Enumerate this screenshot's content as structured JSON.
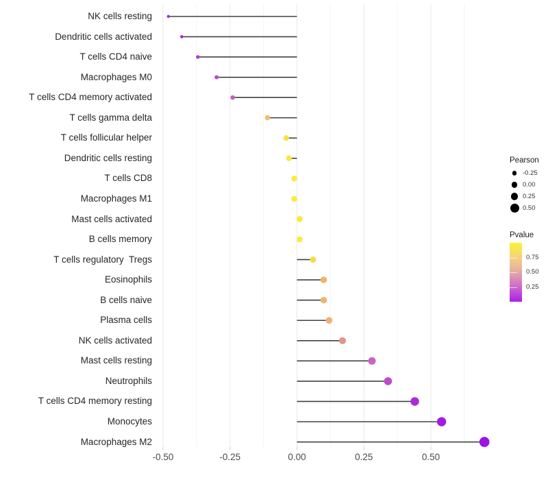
{
  "chart_data": {
    "type": "scatter",
    "variant": "lollipop",
    "title": "",
    "xlabel": "",
    "ylabel": "",
    "xlim": [
      -0.545,
      0.735
    ],
    "x_major_ticks": [
      -0.5,
      -0.25,
      0,
      0.25,
      0.5
    ],
    "x_minor_ticks": [
      -0.375,
      -0.125,
      0.125,
      0.375,
      0.625
    ],
    "x_tick_labels": [
      "-0.50",
      "-0.25",
      "0.00",
      "0.25",
      "0.50"
    ],
    "grid": "vertical-only",
    "stem_color": "#404040",
    "points": [
      {
        "label": "NK cells resting",
        "pearson": -0.48,
        "pvalue_approx": 0.1,
        "color": "#9B2FD1"
      },
      {
        "label": "Dendritic cells activated",
        "pearson": -0.43,
        "pvalue_approx": 0.12,
        "color": "#A134D3"
      },
      {
        "label": "T cells CD4 naive",
        "pearson": -0.37,
        "pvalue_approx": 0.15,
        "color": "#A93CCF"
      },
      {
        "label": "Macrophages M0",
        "pearson": -0.3,
        "pvalue_approx": 0.22,
        "color": "#B84CC6"
      },
      {
        "label": "T cells CD4 memory activated",
        "pearson": -0.24,
        "pvalue_approx": 0.28,
        "color": "#C25FBB"
      },
      {
        "label": "T cells gamma delta",
        "pearson": -0.11,
        "pvalue_approx": 0.65,
        "color": "#F1BC79"
      },
      {
        "label": "T cells follicular helper",
        "pearson": -0.04,
        "pvalue_approx": 0.9,
        "color": "#F8E340"
      },
      {
        "label": "Dendritic cells resting",
        "pearson": -0.03,
        "pvalue_approx": 0.92,
        "color": "#FAE93A"
      },
      {
        "label": "T cells CD8",
        "pearson": -0.01,
        "pvalue_approx": 0.95,
        "color": "#FBED34"
      },
      {
        "label": "Macrophages M1",
        "pearson": -0.01,
        "pvalue_approx": 0.95,
        "color": "#FBED34"
      },
      {
        "label": "Mast cells activated",
        "pearson": 0.01,
        "pvalue_approx": 0.93,
        "color": "#FAEB37"
      },
      {
        "label": "B cells memory",
        "pearson": 0.01,
        "pvalue_approx": 0.93,
        "color": "#FAEB37"
      },
      {
        "label": "T cells regulatory  Tregs",
        "pearson": 0.06,
        "pvalue_approx": 0.85,
        "color": "#F6DB52"
      },
      {
        "label": "Eosinophils",
        "pearson": 0.1,
        "pvalue_approx": 0.68,
        "color": "#EFB46F"
      },
      {
        "label": "B cells naive",
        "pearson": 0.1,
        "pvalue_approx": 0.68,
        "color": "#EFB46F"
      },
      {
        "label": "Plasma cells",
        "pearson": 0.12,
        "pvalue_approx": 0.66,
        "color": "#F0B176"
      },
      {
        "label": "NK cells activated",
        "pearson": 0.17,
        "pvalue_approx": 0.48,
        "color": "#E0948A"
      },
      {
        "label": "Mast cells resting",
        "pearson": 0.28,
        "pvalue_approx": 0.3,
        "color": "#CC62C5"
      },
      {
        "label": "Neutrophils",
        "pearson": 0.34,
        "pvalue_approx": 0.24,
        "color": "#BE4BCD"
      },
      {
        "label": "T cells CD4 memory resting",
        "pearson": 0.44,
        "pvalue_approx": 0.14,
        "color": "#AB2BDA"
      },
      {
        "label": "Monocytes",
        "pearson": 0.54,
        "pvalue_approx": 0.07,
        "color": "#A01CE2"
      },
      {
        "label": "Macrophages M2",
        "pearson": 0.7,
        "pvalue_approx": 0.04,
        "color": "#9C15E5"
      }
    ],
    "size_legend": {
      "title": "Pearson",
      "entries": [
        {
          "label": "-0.25",
          "value": -0.25
        },
        {
          "label": "0.00",
          "value": 0.0
        },
        {
          "label": "0.25",
          "value": 0.25
        },
        {
          "label": "0.50",
          "value": 0.5
        }
      ],
      "dot_color": "#000000"
    },
    "color_legend": {
      "title": "Pvalue",
      "tick_labels": [
        "0.75",
        "0.50",
        "0.25"
      ],
      "tick_values": [
        0.75,
        0.5,
        0.25
      ],
      "range": [
        0,
        1
      ],
      "gradient_stops": [
        {
          "pos": 0.0,
          "color": "#AC1FE8"
        },
        {
          "pos": 0.28,
          "color": "#D070C9"
        },
        {
          "pos": 0.5,
          "color": "#E3A9A4"
        },
        {
          "pos": 0.72,
          "color": "#F3CE85"
        },
        {
          "pos": 1.0,
          "color": "#F9F431"
        }
      ]
    }
  }
}
